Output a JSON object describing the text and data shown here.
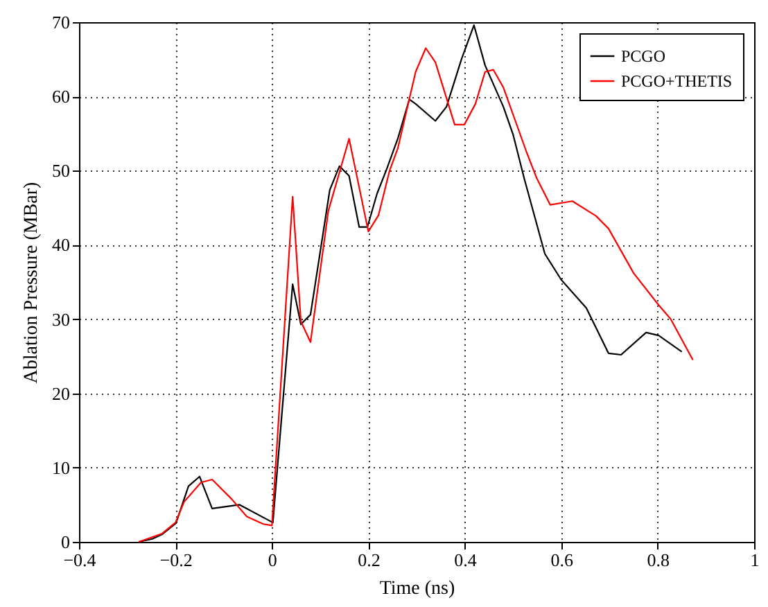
{
  "chart_data": {
    "type": "line",
    "xlabel": "Time (ns)",
    "ylabel": "Ablation Pressure (MBar)",
    "xlim": [
      -0.4,
      1.0
    ],
    "xticks": [
      {
        "value": -0.4,
        "label": "−0.4"
      },
      {
        "value": -0.2,
        "label": "−0.2"
      },
      0.0,
      0.2,
      0.4,
      0.6,
      0.8,
      1.0
    ],
    "ylim": [
      0,
      70
    ],
    "yticks": [
      0,
      10,
      20,
      30,
      40,
      50,
      60,
      70
    ],
    "grid": true,
    "legend": "top right",
    "marker": "none",
    "line_style": "solid",
    "series": [
      {
        "name": "PCGO",
        "color": "#000000",
        "x": [
          -0.276,
          -0.248,
          -0.228,
          -0.199,
          -0.173,
          -0.15,
          -0.124,
          -0.067,
          0.002,
          0.043,
          0.06,
          0.08,
          0.12,
          0.14,
          0.16,
          0.181,
          0.198,
          0.218,
          0.238,
          0.261,
          0.285,
          0.298,
          0.339,
          0.362,
          0.393,
          0.419,
          0.442,
          0.48,
          0.5,
          0.523,
          0.566,
          0.6,
          0.652,
          0.698,
          0.724,
          0.776,
          0.802,
          0.85
        ],
        "values": [
          0,
          0.4,
          1,
          2.5,
          7.5,
          8.8,
          4.5,
          5,
          2.6,
          34.7,
          29.3,
          30.6,
          47.4,
          50.6,
          49.3,
          42.4,
          42.4,
          46.9,
          50.2,
          54.3,
          59.6,
          59,
          56.7,
          58.6,
          65,
          69.6,
          64.2,
          58.6,
          54.9,
          49,
          38.8,
          35.3,
          31.5,
          25.4,
          25.2,
          28.2,
          27.8,
          25.6
        ]
      },
      {
        "name": "PCGO+THETIS",
        "color": "#ff0000",
        "x": [
          -0.276,
          -0.228,
          -0.2,
          -0.182,
          -0.147,
          -0.124,
          -0.084,
          -0.052,
          -0.018,
          0.0,
          0.043,
          0.06,
          0.08,
          0.117,
          0.138,
          0.16,
          0.2,
          0.221,
          0.244,
          0.261,
          0.298,
          0.319,
          0.339,
          0.379,
          0.399,
          0.422,
          0.442,
          0.459,
          0.48,
          0.528,
          0.549,
          0.577,
          0.623,
          0.672,
          0.698,
          0.75,
          0.802,
          0.827,
          0.873
        ],
        "values": [
          0,
          1.1,
          2.6,
          5.4,
          8,
          8.4,
          5.8,
          3.4,
          2.4,
          2.2,
          46.5,
          29.7,
          26.9,
          44.6,
          49.3,
          54.3,
          41.8,
          44,
          50,
          53,
          63.3,
          66.5,
          64.6,
          56.2,
          56.2,
          59,
          63.3,
          63.6,
          61.2,
          52.5,
          49,
          45.4,
          45.9,
          43.9,
          42.2,
          36.2,
          31.9,
          30,
          24.5
        ]
      }
    ]
  }
}
